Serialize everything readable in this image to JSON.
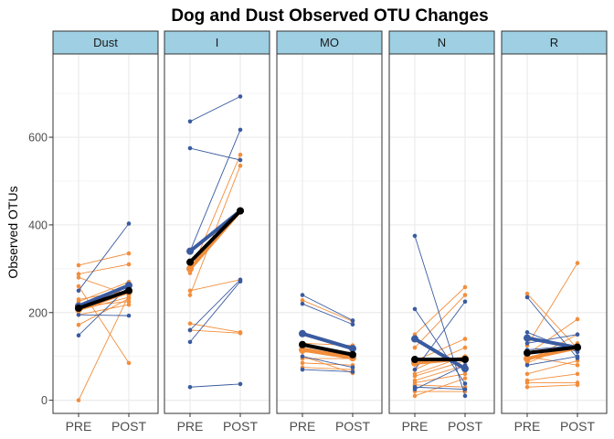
{
  "chart_data": {
    "type": "line",
    "title": "Dog and Dust Observed OTU Changes",
    "ylabel": "Observed OTUs",
    "xlabel": "",
    "categories": [
      "PRE",
      "POST"
    ],
    "ylim": [
      -30,
      790
    ],
    "y_ticks": [
      0,
      200,
      400,
      600
    ],
    "grid": true,
    "legend": "none",
    "colors": {
      "blue": "#3a5ba0",
      "orange": "#f28e3c",
      "mean": "#000000",
      "strip_fill": "#9ecfe3",
      "grid": "#ebebeb"
    },
    "panels": [
      {
        "name": "Dust",
        "mean": [
          210,
          250
        ],
        "blue_mean": [
          215,
          262
        ],
        "orange_mean": [
          207,
          248
        ],
        "blue": [
          [
            250,
            403
          ],
          [
            148,
            260
          ],
          [
            195,
            193
          ],
          [
            205,
            265
          ],
          [
            215,
            250
          ]
        ],
        "orange": [
          [
            308,
            335
          ],
          [
            288,
            310
          ],
          [
            280,
            240
          ],
          [
            172,
            232
          ],
          [
            215,
            225
          ],
          [
            195,
            218
          ],
          [
            230,
            250
          ],
          [
            205,
            235
          ],
          [
            0,
            240
          ],
          [
            260,
            85
          ],
          [
            225,
            270
          ]
        ]
      },
      {
        "name": "I",
        "mean": [
          315,
          432
        ],
        "blue_mean": [
          340,
          432
        ],
        "orange_mean": [
          300,
          432
        ],
        "blue": [
          [
            636,
            693
          ],
          [
            575,
            548
          ],
          [
            340,
            617
          ],
          [
            160,
            275
          ],
          [
            133,
            271
          ],
          [
            30,
            37
          ]
        ],
        "orange": [
          [
            290,
            560
          ],
          [
            240,
            535
          ],
          [
            250,
            275
          ],
          [
            175,
            155
          ],
          [
            160,
            153
          ],
          [
            305,
            432
          ],
          [
            315,
            430
          ]
        ]
      },
      {
        "name": "MO",
        "mean": [
          127,
          104
        ],
        "blue_mean": [
          152,
          118
        ],
        "orange_mean": [
          115,
          97
        ],
        "blue": [
          [
            240,
            182
          ],
          [
            220,
            173
          ],
          [
            100,
            75
          ],
          [
            70,
            65
          ],
          [
            150,
            115
          ]
        ],
        "orange": [
          [
            228,
            180
          ],
          [
            130,
            125
          ],
          [
            110,
            110
          ],
          [
            95,
            95
          ],
          [
            85,
            80
          ],
          [
            75,
            70
          ],
          [
            120,
            100
          ],
          [
            100,
            62
          ]
        ]
      },
      {
        "name": "N",
        "mean": [
          93,
          93
        ],
        "blue_mean": [
          140,
          72
        ],
        "orange_mean": [
          85,
          95
        ],
        "blue": [
          [
            375,
            10
          ],
          [
            208,
            38
          ],
          [
            70,
            225
          ],
          [
            30,
            25
          ],
          [
            25,
            80
          ]
        ],
        "orange": [
          [
            150,
            258
          ],
          [
            120,
            240
          ],
          [
            90,
            140
          ],
          [
            70,
            120
          ],
          [
            60,
            100
          ],
          [
            55,
            90
          ],
          [
            45,
            80
          ],
          [
            40,
            60
          ],
          [
            35,
            30
          ],
          [
            20,
            20
          ],
          [
            10,
            50
          ]
        ]
      },
      {
        "name": "R",
        "mean": [
          108,
          121
        ],
        "blue_mean": [
          142,
          120
        ],
        "orange_mean": [
          95,
          120
        ],
        "blue": [
          [
            235,
            96
          ],
          [
            155,
            110
          ],
          [
            130,
            150
          ],
          [
            115,
            125
          ],
          [
            80,
            100
          ]
        ],
        "orange": [
          [
            243,
            118
          ],
          [
            125,
            313
          ],
          [
            105,
            185
          ],
          [
            90,
            150
          ],
          [
            85,
            130
          ],
          [
            60,
            90
          ],
          [
            45,
            60
          ],
          [
            40,
            40
          ],
          [
            30,
            35
          ],
          [
            100,
            80
          ]
        ]
      }
    ]
  }
}
